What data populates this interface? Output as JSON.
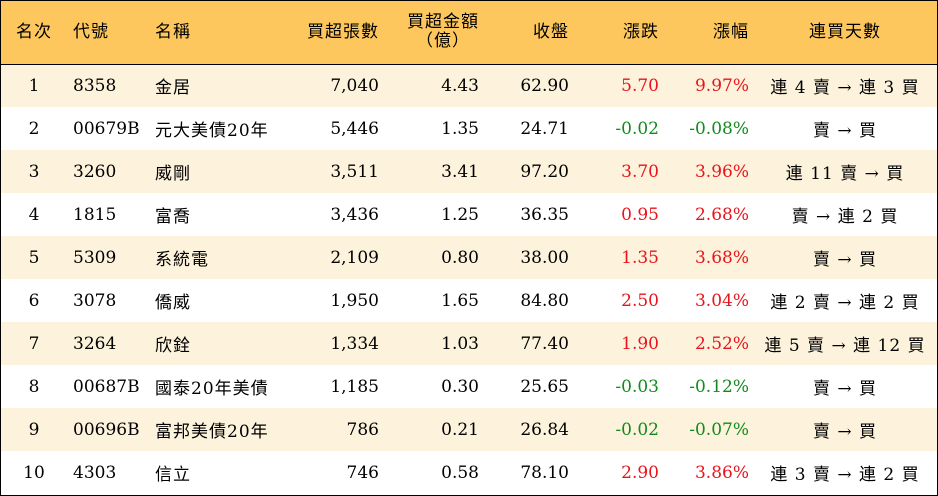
{
  "colors": {
    "header_bg": "#fdc75d",
    "row_alt_bg": "#fdf2dc",
    "up": "#e8141b",
    "down": "#128a1d"
  },
  "headers": {
    "rank": "名次",
    "code": "代號",
    "name": "名稱",
    "net_buy_lots": "買超張數",
    "net_buy_amount_line1": "買超金額",
    "net_buy_amount_line2": "（億）",
    "close": "收盤",
    "change": "漲跌",
    "change_pct": "漲幅",
    "consecutive_days": "連買天數"
  },
  "rows": [
    {
      "rank": "1",
      "code": "8358",
      "name": "金居",
      "net_buy_lots": "7,040",
      "net_buy_amount": "4.43",
      "close": "62.90",
      "change": "5.70",
      "change_pct": "9.97%",
      "direction": "up",
      "consecutive_days": "連 4 賣 → 連 3 買"
    },
    {
      "rank": "2",
      "code": "00679B",
      "name": "元大美債20年",
      "net_buy_lots": "5,446",
      "net_buy_amount": "1.35",
      "close": "24.71",
      "change": "-0.02",
      "change_pct": "-0.08%",
      "direction": "down",
      "consecutive_days": "賣 → 買"
    },
    {
      "rank": "3",
      "code": "3260",
      "name": "威剛",
      "net_buy_lots": "3,511",
      "net_buy_amount": "3.41",
      "close": "97.20",
      "change": "3.70",
      "change_pct": "3.96%",
      "direction": "up",
      "consecutive_days": "連 11 賣 → 買"
    },
    {
      "rank": "4",
      "code": "1815",
      "name": "富喬",
      "net_buy_lots": "3,436",
      "net_buy_amount": "1.25",
      "close": "36.35",
      "change": "0.95",
      "change_pct": "2.68%",
      "direction": "up",
      "consecutive_days": "賣 → 連 2 買"
    },
    {
      "rank": "5",
      "code": "5309",
      "name": "系統電",
      "net_buy_lots": "2,109",
      "net_buy_amount": "0.80",
      "close": "38.00",
      "change": "1.35",
      "change_pct": "3.68%",
      "direction": "up",
      "consecutive_days": "賣 → 買"
    },
    {
      "rank": "6",
      "code": "3078",
      "name": "僑威",
      "net_buy_lots": "1,950",
      "net_buy_amount": "1.65",
      "close": "84.80",
      "change": "2.50",
      "change_pct": "3.04%",
      "direction": "up",
      "consecutive_days": "連 2 賣 → 連 2 買"
    },
    {
      "rank": "7",
      "code": "3264",
      "name": "欣銓",
      "net_buy_lots": "1,334",
      "net_buy_amount": "1.03",
      "close": "77.40",
      "change": "1.90",
      "change_pct": "2.52%",
      "direction": "up",
      "consecutive_days": "連 5 賣 → 連 12 買"
    },
    {
      "rank": "8",
      "code": "00687B",
      "name": "國泰20年美債",
      "net_buy_lots": "1,185",
      "net_buy_amount": "0.30",
      "close": "25.65",
      "change": "-0.03",
      "change_pct": "-0.12%",
      "direction": "down",
      "consecutive_days": "賣 → 買"
    },
    {
      "rank": "9",
      "code": "00696B",
      "name": "富邦美債20年",
      "net_buy_lots": "786",
      "net_buy_amount": "0.21",
      "close": "26.84",
      "change": "-0.02",
      "change_pct": "-0.07%",
      "direction": "down",
      "consecutive_days": "賣 → 買"
    },
    {
      "rank": "10",
      "code": "4303",
      "name": "信立",
      "net_buy_lots": "746",
      "net_buy_amount": "0.58",
      "close": "78.10",
      "change": "2.90",
      "change_pct": "3.86%",
      "direction": "up",
      "consecutive_days": "連 3 賣 → 連 2 買"
    }
  ]
}
